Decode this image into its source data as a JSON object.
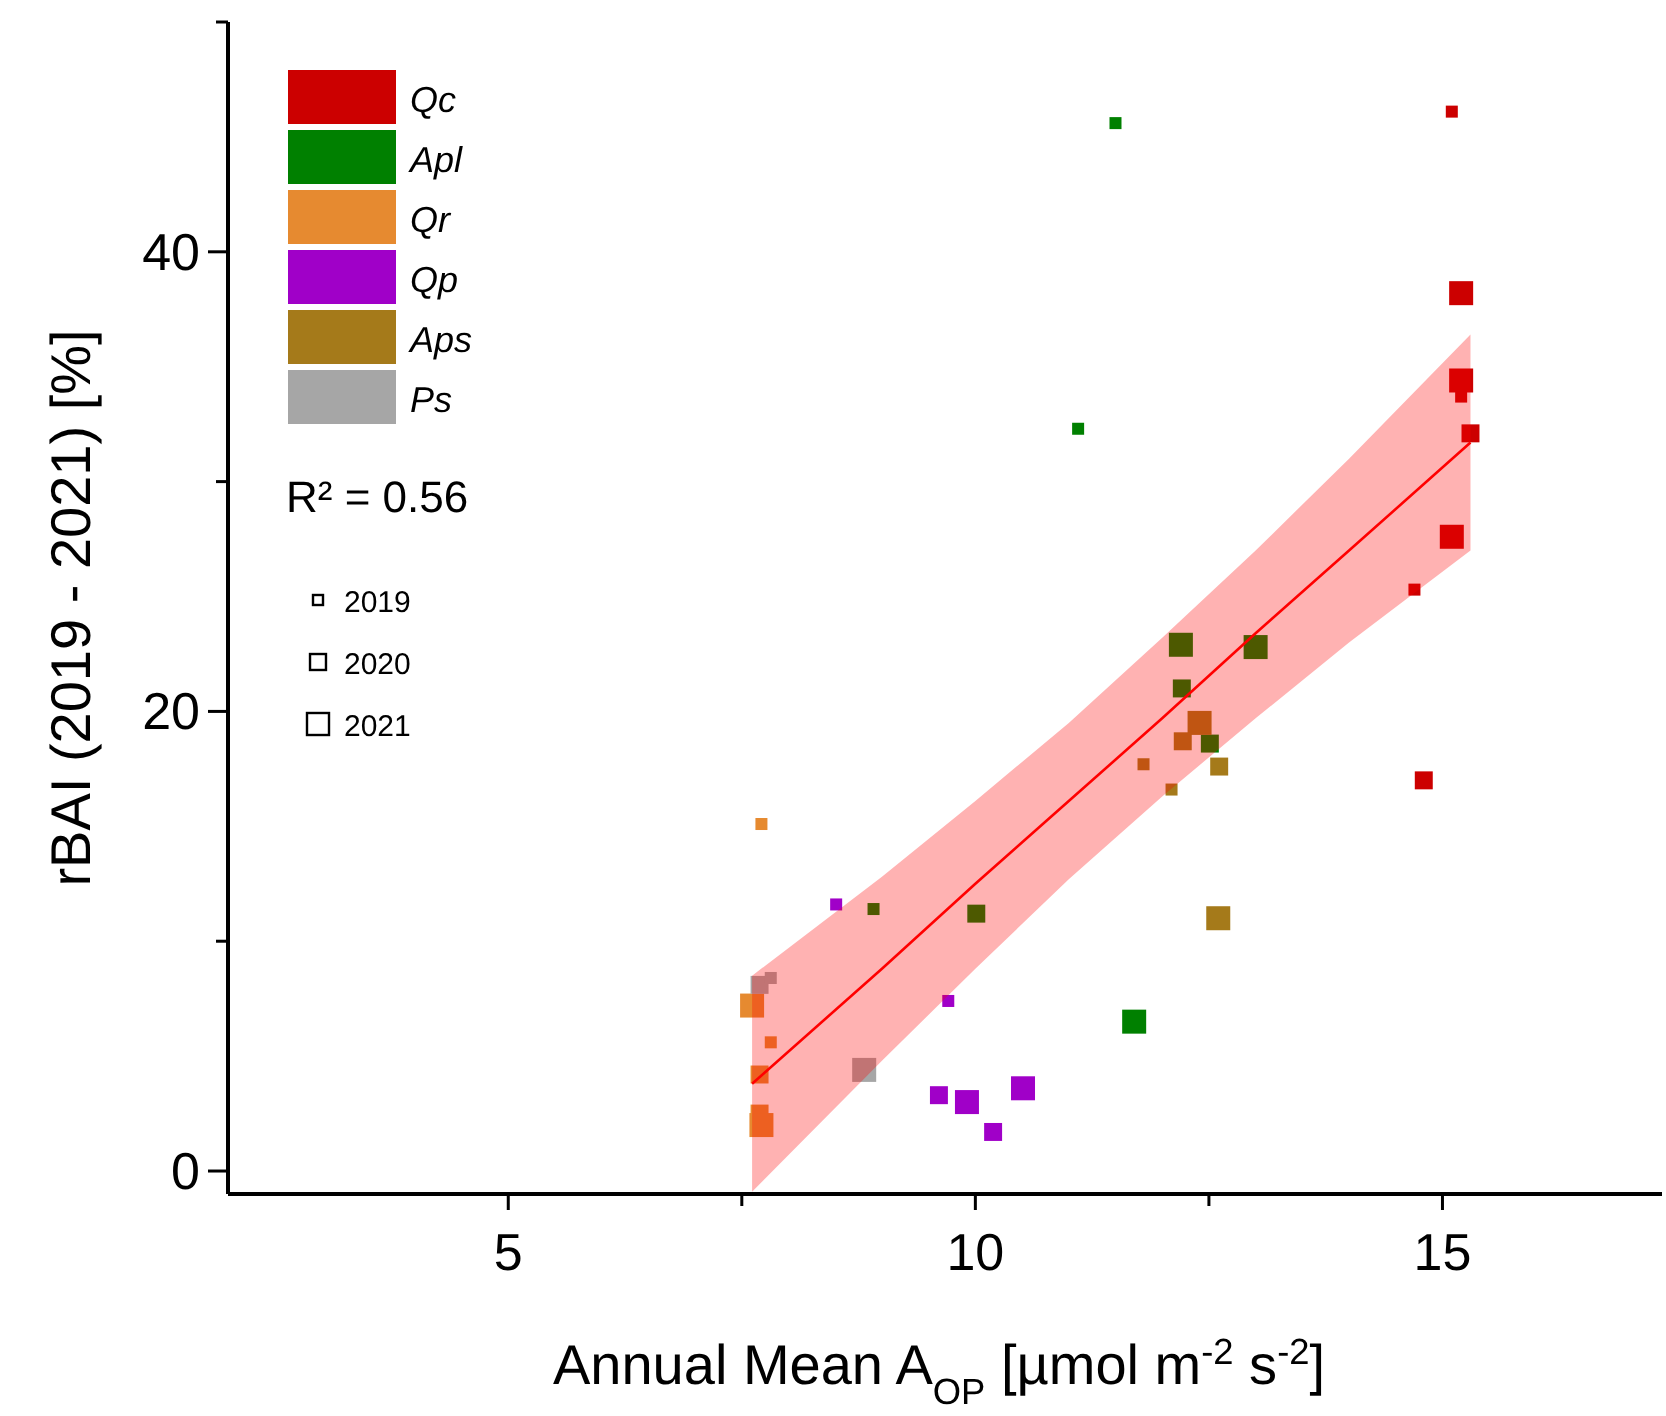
{
  "chart_data": {
    "type": "bubble",
    "xlabel": "Annual Mean A$_{OP}$ [µmol m$^{-2}$ s$^{-2}$]",
    "ylabel": "rBAI (2019 - 2021) [%]",
    "xlim": [
      2,
      17.35
    ],
    "ylim": [
      -1,
      50
    ],
    "xticks": [
      5,
      {
        "value": 7.5,
        "label": null
      },
      10,
      {
        "value": 12.5,
        "label": null
      },
      15
    ],
    "yticks": [
      0,
      {
        "value": 10,
        "label": null
      },
      20,
      {
        "value": 30,
        "label": null
      },
      40,
      {
        "value": 50,
        "label": null
      }
    ],
    "grid": false,
    "legend": "top left",
    "marker": "square",
    "annotations": [
      "R² = 0.56",
      "2019",
      "2020",
      "2021"
    ],
    "series": [
      {
        "name": "Qc",
        "color": "#cc0000",
        "x": [
          15.1,
          15.2,
          15.2,
          15.2,
          15.3,
          15.1,
          14.7,
          14.8
        ],
        "values": [
          46.1,
          38.2,
          34.4,
          33.7,
          32.1,
          27.6,
          25.3,
          17.0
        ],
        "sizes": [
          0.25,
          1,
          1,
          0.25,
          0.56,
          1,
          0.25,
          0.56
        ]
      },
      {
        "name": "Apl",
        "color": "#008000",
        "x": [
          12.2,
          13.0,
          12.21,
          12.51,
          8.91,
          10.01,
          11.7,
          11.5,
          11.1
        ],
        "values": [
          22.9,
          22.8,
          21.0,
          18.6,
          11.4,
          11.2,
          6.5,
          45.6,
          32.3
        ],
        "sizes": [
          1,
          1,
          0.56,
          0.56,
          0.25,
          0.56,
          1,
          0.25,
          0.25
        ]
      },
      {
        "name": "Qr",
        "color": "#e68a30",
        "x": [
          7.71,
          7.61,
          7.81,
          7.69,
          7.69,
          7.71
        ],
        "values": [
          15.1,
          7.2,
          5.6,
          4.2,
          2.5,
          2.0
        ],
        "sizes": [
          0.25,
          1,
          0.25,
          0.56,
          0.56,
          1
        ]
      },
      {
        "name": "Qp",
        "color": "#a000c8",
        "x": [
          8.51,
          9.71,
          9.61,
          9.91,
          10.51,
          10.19
        ],
        "values": [
          11.6,
          7.4,
          3.3,
          3.0,
          3.6,
          1.7
        ],
        "sizes": [
          0.25,
          0.25,
          0.56,
          1,
          1,
          0.56
        ]
      },
      {
        "name": "Aps",
        "color": "#a57a1a",
        "x": [
          12.4,
          12.22,
          11.8,
          12.61,
          12.1,
          12.6
        ],
        "values": [
          19.5,
          18.7,
          17.7,
          17.6,
          16.6,
          11.0
        ],
        "sizes": [
          1,
          0.56,
          0.25,
          0.56,
          0.25,
          1
        ]
      },
      {
        "name": "Ps",
        "color": "#a6a6a6",
        "x": [
          7.69,
          7.81,
          8.81
        ],
        "values": [
          8.1,
          8.4,
          4.4
        ],
        "sizes": [
          0.56,
          0.25,
          1
        ]
      },
      {
        "type": "line",
        "marker": "none",
        "color": "#ff0000",
        "x": [
          7.61,
          9,
          10,
          11,
          12,
          13,
          14,
          15.3
        ],
        "values": [
          3.8,
          8.8,
          12.5,
          16.1,
          19.7,
          23.4,
          27,
          31.7
        ],
        "lower": [
          -0.9,
          4.8,
          8.8,
          12.7,
          16.3,
          19.7,
          23,
          27
        ],
        "upper": [
          8.5,
          12.8,
          16.1,
          19.5,
          23.2,
          27,
          31,
          36.4
        ]
      }
    ]
  }
}
